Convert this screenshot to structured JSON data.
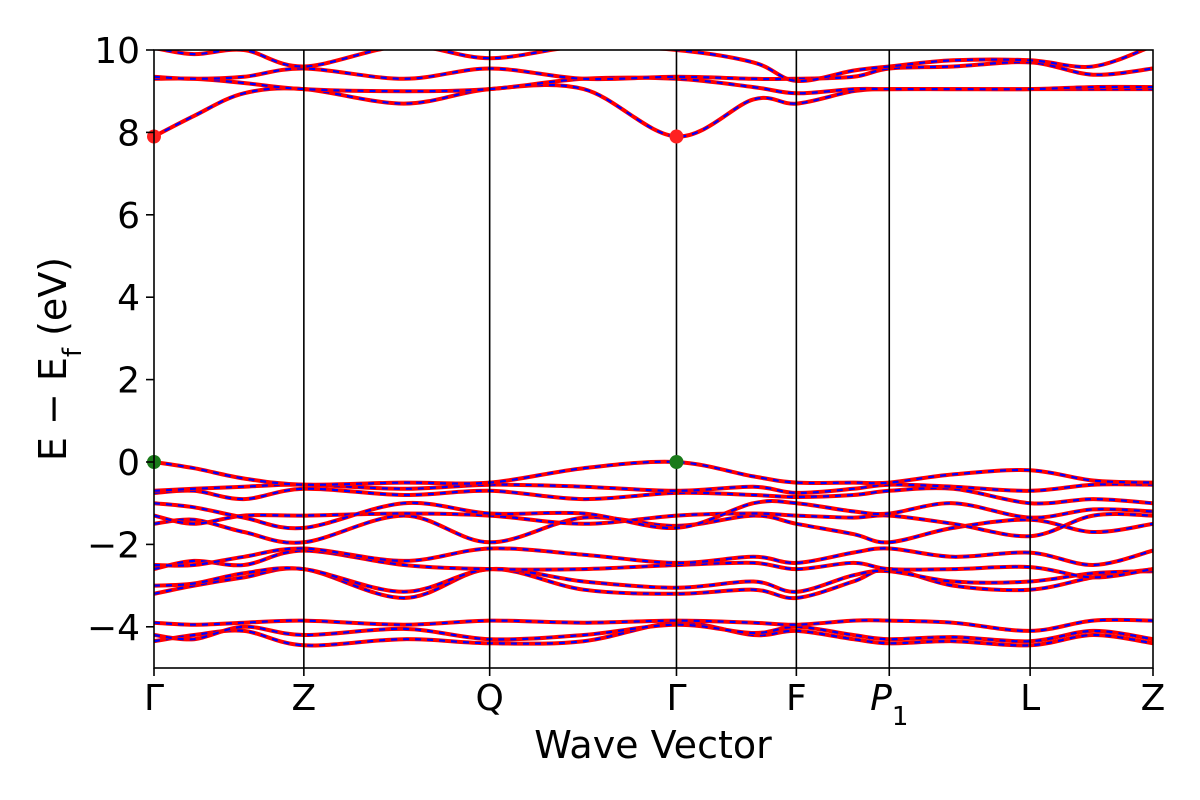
{
  "chart_data": {
    "type": "line",
    "xlabel": "Wave Vector",
    "ylabel": {
      "main": "E − E",
      "sub": "f",
      "unit": " (eV)"
    },
    "ylim": [
      -5,
      10
    ],
    "yticks": [
      -4,
      -2,
      0,
      2,
      4,
      6,
      8,
      10
    ],
    "ytick_labels": [
      "−4",
      "−2",
      "0",
      "2",
      "4",
      "6",
      "8",
      "10"
    ],
    "grid": false,
    "kpoints": [
      {
        "label": "Γ",
        "x": 0.0
      },
      {
        "label": "Z",
        "x": 0.15
      },
      {
        "label": "Q",
        "x": 0.336
      },
      {
        "label": "Γ",
        "x": 0.523
      },
      {
        "label": "F",
        "x": 0.643
      },
      {
        "label": "P",
        "sub": "1",
        "x": 0.736
      },
      {
        "label": "L",
        "x": 0.877
      },
      {
        "label": "Z",
        "x": 1.0
      }
    ],
    "bands": [
      {
        "x": [
          0,
          0.04,
          0.09,
          0.15,
          0.25,
          0.336,
          0.43,
          0.523,
          0.6,
          0.643,
          0.7,
          0.736,
          0.8,
          0.877,
          0.94,
          1.0
        ],
        "y": [
          -4.35,
          -4.2,
          -4.1,
          -4.45,
          -4.3,
          -4.4,
          -4.35,
          -3.9,
          -4.2,
          -4.1,
          -4.3,
          -4.4,
          -4.35,
          -4.45,
          -4.2,
          -4.4
        ]
      },
      {
        "x": [
          0,
          0.04,
          0.09,
          0.15,
          0.25,
          0.336,
          0.43,
          0.523,
          0.6,
          0.643,
          0.7,
          0.736,
          0.8,
          0.877,
          0.94,
          1.0
        ],
        "y": [
          -4.2,
          -4.3,
          -4.0,
          -4.2,
          -4.05,
          -4.3,
          -4.2,
          -3.95,
          -4.15,
          -4.0,
          -4.2,
          -4.3,
          -4.25,
          -4.35,
          -4.1,
          -4.3
        ]
      },
      {
        "x": [
          0,
          0.04,
          0.09,
          0.15,
          0.25,
          0.336,
          0.43,
          0.523,
          0.6,
          0.643,
          0.7,
          0.736,
          0.8,
          0.877,
          0.94,
          1.0
        ],
        "y": [
          -3.9,
          -3.95,
          -3.9,
          -3.85,
          -3.95,
          -3.85,
          -3.9,
          -3.85,
          -3.9,
          -3.95,
          -3.85,
          -3.85,
          -3.9,
          -4.1,
          -3.85,
          -3.85
        ]
      },
      {
        "x": [
          0,
          0.04,
          0.09,
          0.15,
          0.25,
          0.336,
          0.43,
          0.523,
          0.6,
          0.643,
          0.7,
          0.736,
          0.8,
          0.877,
          0.94,
          1.0
        ],
        "y": [
          -3.2,
          -3.0,
          -2.8,
          -2.6,
          -3.3,
          -2.6,
          -3.1,
          -3.2,
          -3.1,
          -3.3,
          -2.9,
          -2.6,
          -3.0,
          -3.1,
          -2.8,
          -2.6
        ]
      },
      {
        "x": [
          0,
          0.04,
          0.09,
          0.15,
          0.25,
          0.336,
          0.43,
          0.523,
          0.6,
          0.643,
          0.7,
          0.736,
          0.8,
          0.877,
          0.94,
          1.0
        ],
        "y": [
          -3.0,
          -2.95,
          -2.7,
          -2.6,
          -3.15,
          -2.6,
          -2.9,
          -3.05,
          -2.9,
          -3.15,
          -2.75,
          -2.65,
          -2.9,
          -2.9,
          -2.7,
          -2.65
        ]
      },
      {
        "x": [
          0,
          0.04,
          0.09,
          0.15,
          0.25,
          0.336,
          0.43,
          0.523,
          0.6,
          0.643,
          0.7,
          0.736,
          0.8,
          0.877,
          0.94,
          1.0
        ],
        "y": [
          -2.6,
          -2.4,
          -2.5,
          -2.15,
          -2.5,
          -2.6,
          -2.6,
          -2.5,
          -2.45,
          -2.6,
          -2.45,
          -2.6,
          -2.6,
          -2.55,
          -2.8,
          -2.6
        ]
      },
      {
        "x": [
          0,
          0.04,
          0.09,
          0.15,
          0.25,
          0.336,
          0.43,
          0.523,
          0.6,
          0.643,
          0.7,
          0.736,
          0.8,
          0.877,
          0.94,
          1.0
        ],
        "y": [
          -2.5,
          -2.5,
          -2.3,
          -2.1,
          -2.4,
          -2.1,
          -2.25,
          -2.45,
          -2.3,
          -2.45,
          -2.2,
          -2.1,
          -2.3,
          -2.2,
          -2.5,
          -2.15
        ]
      },
      {
        "x": [
          0,
          0.04,
          0.09,
          0.15,
          0.25,
          0.336,
          0.43,
          0.523,
          0.6,
          0.643,
          0.7,
          0.736,
          0.8,
          0.877,
          0.94,
          1.0
        ],
        "y": [
          -1.5,
          -1.4,
          -1.7,
          -1.95,
          -1.3,
          -1.95,
          -1.35,
          -1.55,
          -1.3,
          -1.5,
          -1.75,
          -1.95,
          -1.6,
          -1.4,
          -1.7,
          -1.5
        ]
      },
      {
        "x": [
          0,
          0.04,
          0.09,
          0.15,
          0.25,
          0.336,
          0.43,
          0.523,
          0.6,
          0.643,
          0.7,
          0.736,
          0.8,
          0.877,
          0.94,
          1.0
        ],
        "y": [
          -1.3,
          -1.5,
          -1.3,
          -1.3,
          -1.25,
          -1.3,
          -1.5,
          -1.3,
          -1.25,
          -1.3,
          -1.35,
          -1.3,
          -1.5,
          -1.8,
          -1.3,
          -1.3
        ]
      },
      {
        "x": [
          0,
          0.04,
          0.09,
          0.15,
          0.25,
          0.336,
          0.43,
          0.523,
          0.6,
          0.643,
          0.7,
          0.736,
          0.8,
          0.877,
          0.94,
          1.0
        ],
        "y": [
          -1.0,
          -1.1,
          -1.35,
          -1.6,
          -1.0,
          -1.25,
          -1.25,
          -1.6,
          -1.0,
          -1.0,
          -1.2,
          -1.25,
          -1.0,
          -1.35,
          -1.15,
          -1.2
        ]
      },
      {
        "x": [
          0,
          0.04,
          0.09,
          0.15,
          0.25,
          0.336,
          0.43,
          0.523,
          0.6,
          0.643,
          0.7,
          0.736,
          0.8,
          0.877,
          0.94,
          1.0
        ],
        "y": [
          -0.75,
          -0.7,
          -0.9,
          -0.65,
          -0.8,
          -0.7,
          -0.9,
          -0.75,
          -0.8,
          -0.85,
          -0.8,
          -0.7,
          -0.65,
          -1.0,
          -0.9,
          -1.0
        ]
      },
      {
        "x": [
          0,
          0.04,
          0.09,
          0.15,
          0.25,
          0.336,
          0.43,
          0.523,
          0.6,
          0.643,
          0.7,
          0.736,
          0.8,
          0.877,
          0.94,
          1.0
        ],
        "y": [
          -0.7,
          -0.65,
          -0.6,
          -0.55,
          -0.65,
          -0.55,
          -0.6,
          -0.7,
          -0.6,
          -0.75,
          -0.65,
          -0.55,
          -0.6,
          -0.7,
          -0.55,
          -0.55
        ]
      },
      {
        "x": [
          0,
          0.04,
          0.09,
          0.15,
          0.25,
          0.336,
          0.43,
          0.523,
          0.6,
          0.643,
          0.7,
          0.736,
          0.8,
          0.877,
          0.94,
          1.0
        ],
        "y": [
          0.0,
          -0.15,
          -0.4,
          -0.55,
          -0.5,
          -0.5,
          -0.15,
          0.0,
          -0.35,
          -0.5,
          -0.5,
          -0.5,
          -0.3,
          -0.2,
          -0.45,
          -0.5
        ]
      },
      {
        "x": [
          0,
          0.04,
          0.09,
          0.15,
          0.25,
          0.336,
          0.43,
          0.523,
          0.6,
          0.643,
          0.7,
          0.736,
          0.8,
          0.877,
          0.94,
          1.0
        ],
        "y": [
          7.9,
          8.4,
          8.95,
          9.05,
          8.7,
          9.05,
          9.05,
          7.9,
          8.8,
          8.7,
          9.0,
          9.05,
          9.05,
          9.05,
          9.05,
          9.05
        ]
      },
      {
        "x": [
          0,
          0.04,
          0.09,
          0.15,
          0.25,
          0.336,
          0.43,
          0.523,
          0.6,
          0.643,
          0.7,
          0.736,
          0.8,
          0.877,
          0.94,
          1.0
        ],
        "y": [
          9.3,
          9.3,
          9.2,
          9.05,
          9.0,
          9.05,
          9.3,
          9.3,
          9.1,
          8.95,
          9.05,
          9.05,
          9.05,
          9.05,
          9.1,
          9.1
        ]
      },
      {
        "x": [
          0,
          0.04,
          0.09,
          0.15,
          0.25,
          0.336,
          0.43,
          0.523,
          0.6,
          0.643,
          0.7,
          0.736,
          0.8,
          0.877,
          0.94,
          1.0
        ],
        "y": [
          9.35,
          9.3,
          9.35,
          9.55,
          9.3,
          9.55,
          9.3,
          9.35,
          9.3,
          9.3,
          9.35,
          9.55,
          9.6,
          9.7,
          9.4,
          9.55
        ]
      },
      {
        "x": [
          0,
          0.04,
          0.09,
          0.15,
          0.25,
          0.336,
          0.43,
          0.523,
          0.6,
          0.643,
          0.7,
          0.736,
          0.8,
          0.877,
          0.94,
          1.0
        ],
        "y": [
          10.05,
          9.9,
          10.0,
          9.6,
          10.1,
          9.8,
          10.1,
          10.0,
          9.7,
          9.25,
          9.5,
          9.6,
          9.75,
          9.75,
          9.6,
          10.1
        ]
      }
    ],
    "markers": [
      {
        "x": 0.0,
        "y": 7.9,
        "color": "#ff2020",
        "kind": "cbm"
      },
      {
        "x": 0.523,
        "y": 7.9,
        "color": "#ff2020",
        "kind": "cbm"
      },
      {
        "x": 0.0,
        "y": 0.0,
        "color": "#1a7a1a",
        "kind": "vbm"
      },
      {
        "x": 0.523,
        "y": 0.0,
        "color": "#1a7a1a",
        "kind": "vbm"
      }
    ],
    "colors": {
      "spin_up": "#ff0000",
      "spin_down": "#0000ff"
    }
  }
}
